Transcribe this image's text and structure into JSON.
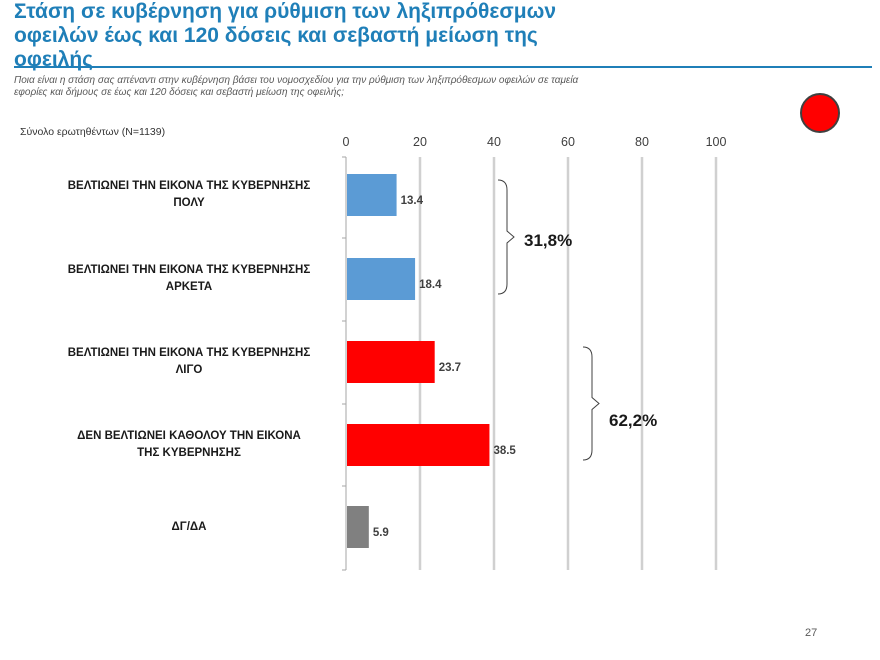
{
  "slide": {
    "title": "Στάση σε κυβέρνηση για ρύθμιση των ληξιπρόθεσμων οφειλών έως και 120 δόσεις και σεβαστή μείωση της οφειλής",
    "question": "Ποια είναι η στάση σας απέναντι στην κυβέρνηση βάσει του νομοσχεδίου για την ρύθμιση των ληξιπρόθεσμων  οφειλών σε ταμεία εφορίες και δήμους σε έως και 120 δόσεις και σεβαστή μείωση της οφειλής;",
    "sample": "Σύνολο ερωτηθέντων (N=1139)",
    "page_number": "27",
    "indicator_color": "#ff0000"
  },
  "chart_data": {
    "type": "bar",
    "orientation": "horizontal",
    "xlim": [
      0,
      100
    ],
    "ticks": [
      0,
      20,
      40,
      60,
      80,
      100
    ],
    "grid": true,
    "categories": [
      [
        "ΒΕΛΤΙΩΝΕΙ ΤΗΝ ΕΙΚΟΝΑ ΤΗΣ ΚΥΒΕΡΝΗΣΗΣ",
        "ΠΟΛΥ"
      ],
      [
        "ΒΕΛΤΙΩΝΕΙ ΤΗΝ ΕΙΚΟΝΑ ΤΗΣ ΚΥΒΕΡΝΗΣΗΣ",
        "ΑΡΚΕΤΑ"
      ],
      [
        "ΒΕΛΤΙΩΝΕΙ ΤΗΝ ΕΙΚΟΝΑ ΤΗΣ ΚΥΒΕΡΝΗΣΗΣ",
        "ΛΙΓΟ"
      ],
      [
        "ΔΕΝ ΒΕΛΤΙΩΝΕΙ ΚΑΘΟΛΟΥ ΤΗΝ ΕΙΚΟΝΑ",
        "ΤΗΣ ΚΥΒΕΡΝΗΣΗΣ"
      ],
      [
        "ΔΓ/ΔΑ"
      ]
    ],
    "values": [
      13.4,
      18.4,
      23.7,
      38.5,
      5.9
    ],
    "value_labels": [
      "13.4",
      "18.4",
      "23.7",
      "38.5",
      "5.9"
    ],
    "colors": [
      "#5b9bd5",
      "#5b9bd5",
      "#ff0000",
      "#ff0000",
      "#808080"
    ],
    "brackets": [
      {
        "from": 0,
        "to": 1,
        "label": "31,8%"
      },
      {
        "from": 2,
        "to": 3,
        "label": "62,2%"
      }
    ]
  }
}
